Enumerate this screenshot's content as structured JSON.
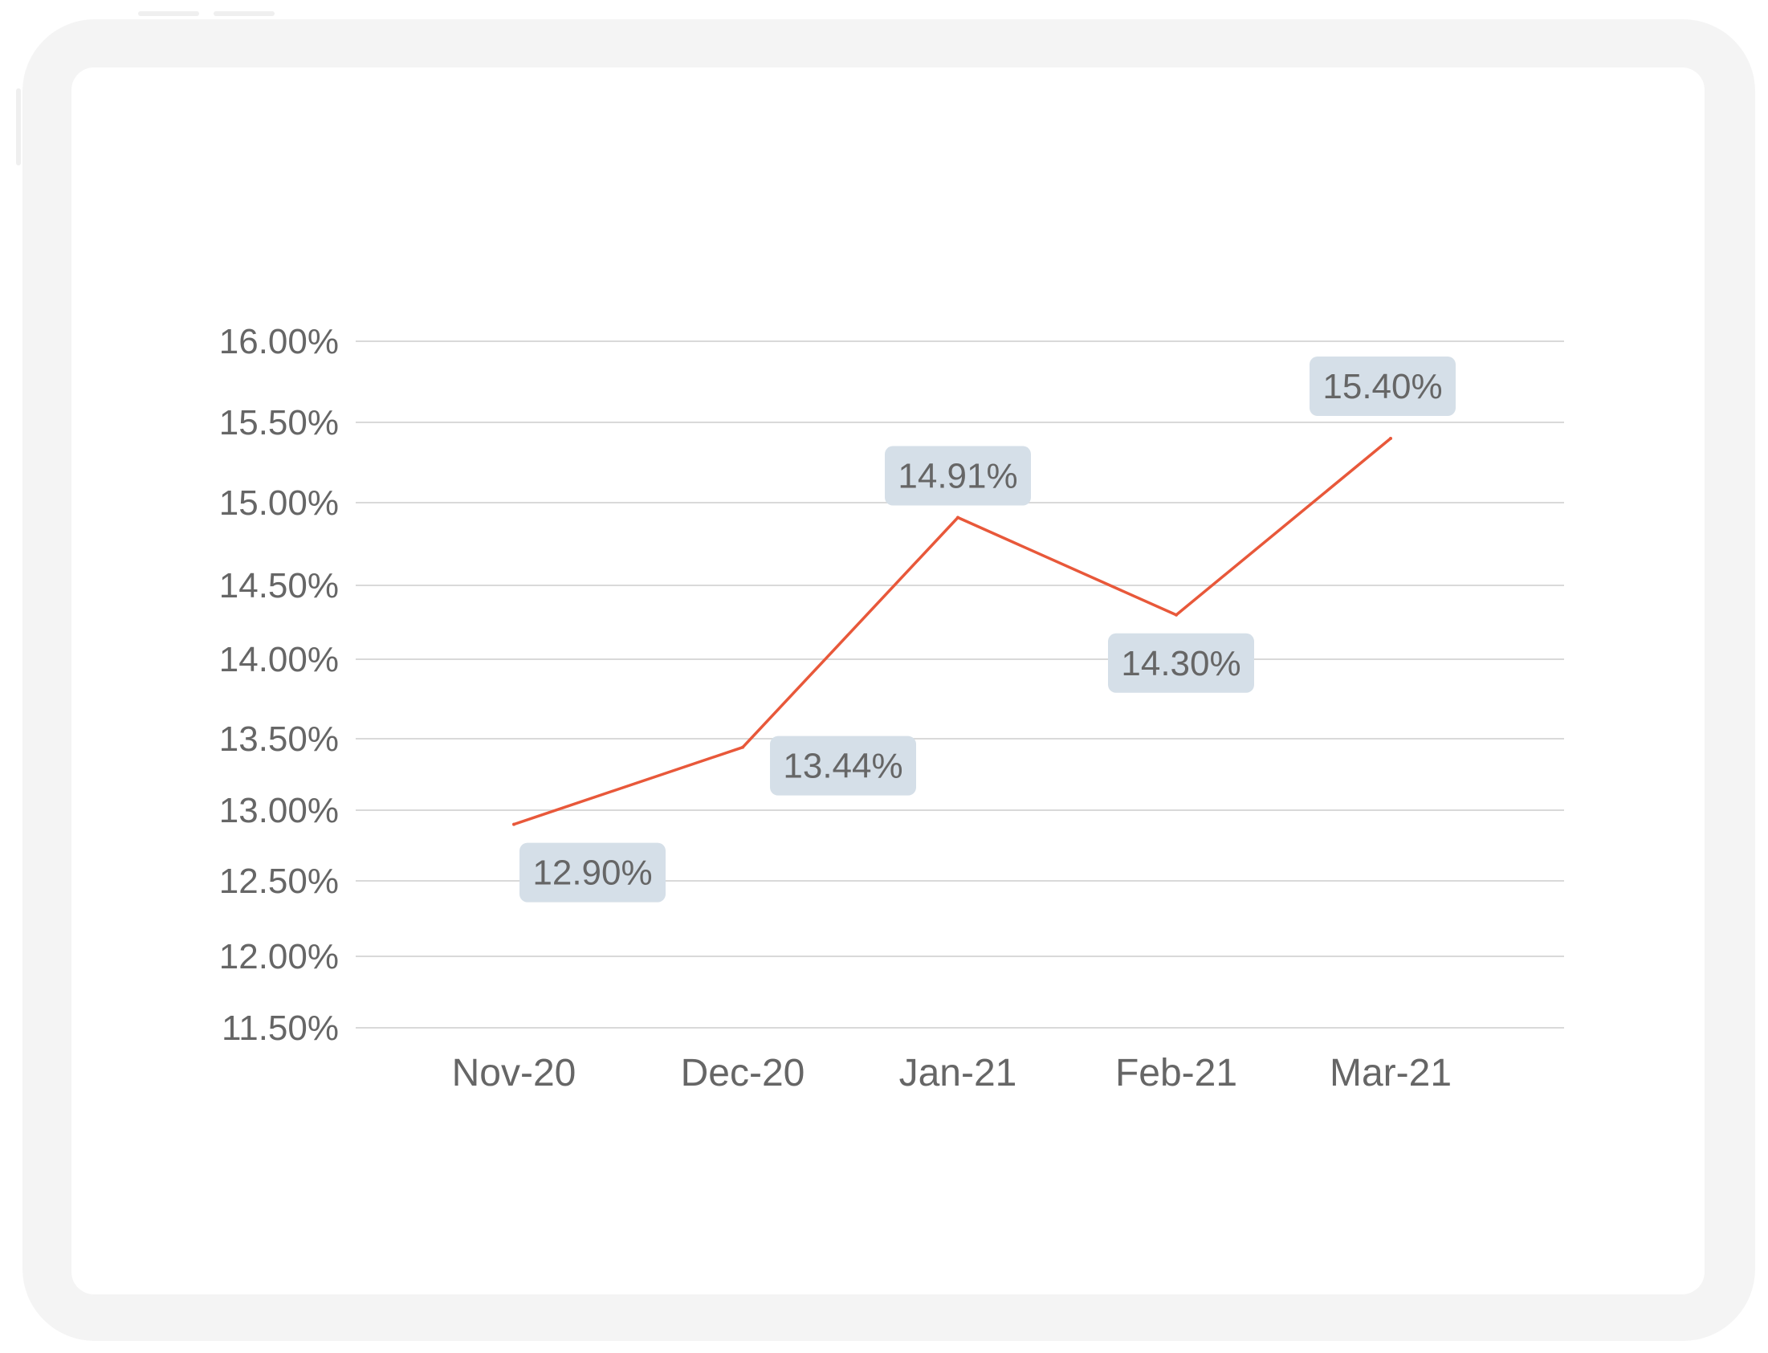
{
  "chart_data": {
    "type": "line",
    "categories": [
      "Nov-20",
      "Dec-20",
      "Jan-21",
      "Feb-21",
      "Mar-21"
    ],
    "values": [
      12.9,
      13.44,
      14.91,
      14.3,
      15.4
    ],
    "data_labels": [
      "12.90%",
      "13.44%",
      "14.91%",
      "14.30%",
      "15.40%"
    ],
    "y_ticks": [
      11.5,
      12.0,
      12.5,
      13.0,
      13.5,
      14.0,
      14.5,
      15.0,
      15.5,
      16.0
    ],
    "y_tick_labels": [
      "11.50%",
      "12.00%",
      "12.50%",
      "13.00%",
      "13.50%",
      "14.00%",
      "14.50%",
      "15.00%",
      "15.50%",
      "16.00%"
    ],
    "ylim": [
      11.5,
      16.0
    ],
    "grid": true,
    "title": "",
    "xlabel": "",
    "ylabel": "",
    "colors": {
      "line": "#e8583a",
      "label_box": "#d5dfe8",
      "grid": "#d9d9d9",
      "text": "#666666"
    }
  }
}
